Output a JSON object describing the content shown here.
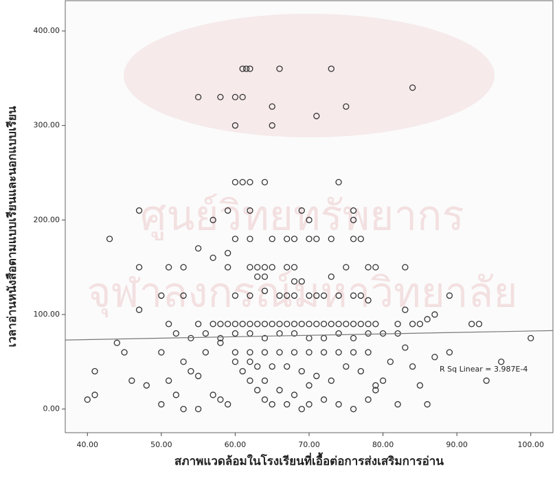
{
  "chart_data": {
    "type": "scatter",
    "x_label": "สภาพแวดล้อมในโรงเรียนที่เอื้อต่อการส่งเสริมการอ่าน",
    "y_label": "เวลาอ่านหนังสือตามแบบเรียนและนอกแบบเรียน",
    "annotation": "R Sq Linear = 3.987E-4",
    "watermark": [
      "ศูนย์วิทยทรัพยากร",
      "จุฬาลงกรณ์มหาวิทยาลัย"
    ],
    "color": "#333333",
    "line_color": "#777777",
    "xlim": [
      37,
      103
    ],
    "ylim": [
      -25,
      432
    ],
    "xticks": [
      {
        "value": 40,
        "label": "40.00"
      },
      {
        "value": 50,
        "label": "50.00"
      },
      {
        "value": 60,
        "label": "60.00"
      },
      {
        "value": 70,
        "label": "70.00"
      },
      {
        "value": 80,
        "label": "80.00"
      },
      {
        "value": 90,
        "label": "90.00"
      },
      {
        "value": 100,
        "label": "100.00"
      }
    ],
    "yticks": [
      {
        "value": 0,
        "label": "0.00"
      },
      {
        "value": 100,
        "label": "100.00"
      },
      {
        "value": 200,
        "label": "200.00"
      },
      {
        "value": 300,
        "label": "300.00"
      },
      {
        "value": 400,
        "label": "400.00"
      }
    ],
    "x": [
      61,
      61.5,
      62,
      66,
      73,
      84,
      55,
      58,
      60,
      61,
      65,
      75,
      60,
      65,
      71,
      60,
      61,
      62,
      64,
      74,
      47,
      59,
      62,
      69,
      76,
      57,
      70,
      76,
      43,
      60,
      62,
      65,
      67,
      68,
      70,
      71,
      73,
      76,
      77,
      47,
      51,
      53,
      59,
      62,
      63,
      64,
      65,
      67,
      68,
      75,
      78,
      79,
      83,
      55,
      57,
      59,
      63,
      64,
      68,
      69,
      73,
      47,
      50,
      53,
      60,
      62,
      64,
      66,
      67,
      68,
      70,
      71,
      72,
      74,
      76,
      77,
      78,
      89,
      83,
      86,
      87,
      51,
      55,
      57,
      58,
      59,
      60,
      61,
      62,
      63,
      64,
      65,
      66,
      67,
      68,
      69,
      70,
      71,
      72,
      73,
      74,
      75,
      76,
      77,
      78,
      79,
      82,
      84,
      85,
      92,
      93,
      100,
      96,
      94,
      86,
      85,
      84,
      81,
      89,
      87,
      82,
      80,
      79,
      78,
      76,
      74,
      72,
      70,
      69,
      67,
      65,
      64,
      63,
      62,
      61,
      60,
      59,
      58,
      57,
      55,
      53,
      52,
      51,
      50,
      48,
      46,
      45,
      44,
      41,
      41,
      40,
      50,
      53,
      54,
      55,
      56,
      58,
      60,
      62,
      64,
      66,
      68,
      70,
      72,
      74,
      76,
      78,
      63,
      65,
      67,
      69,
      71,
      73,
      62,
      64,
      66,
      68,
      70,
      75,
      77,
      79,
      52,
      54,
      56,
      58,
      60,
      62,
      64,
      66,
      68,
      70,
      72,
      74,
      76,
      78,
      80,
      83,
      82
    ],
    "values": [
      360,
      360,
      360,
      360,
      360,
      340,
      330,
      330,
      330,
      330,
      320,
      320,
      300,
      300,
      310,
      240,
      240,
      240,
      240,
      240,
      210,
      210,
      210,
      210,
      210,
      200,
      200,
      200,
      180,
      180,
      180,
      180,
      180,
      180,
      180,
      180,
      180,
      180,
      180,
      150,
      150,
      150,
      150,
      150,
      150,
      150,
      150,
      150,
      150,
      150,
      150,
      150,
      150,
      170,
      160,
      165,
      140,
      140,
      135,
      135,
      140,
      105,
      120,
      120,
      120,
      120,
      125,
      120,
      120,
      120,
      120,
      120,
      120,
      120,
      120,
      120,
      115,
      120,
      105,
      95,
      100,
      90,
      90,
      90,
      90,
      90,
      90,
      90,
      90,
      90,
      90,
      90,
      90,
      90,
      90,
      90,
      90,
      90,
      90,
      90,
      90,
      90,
      90,
      90,
      90,
      90,
      90,
      90,
      90,
      90,
      90,
      75,
      50,
      30,
      5,
      25,
      45,
      50,
      60,
      55,
      5,
      30,
      20,
      10,
      0,
      5,
      10,
      5,
      0,
      5,
      5,
      10,
      20,
      30,
      40,
      50,
      5,
      10,
      15,
      0,
      0,
      15,
      30,
      5,
      25,
      30,
      60,
      70,
      40,
      15,
      10,
      60,
      50,
      40,
      35,
      60,
      70,
      60,
      60,
      60,
      60,
      60,
      60,
      60,
      60,
      60,
      60,
      45,
      45,
      45,
      40,
      35,
      30,
      50,
      30,
      20,
      15,
      25,
      45,
      40,
      25,
      80,
      75,
      80,
      75,
      80,
      80,
      75,
      80,
      80,
      75,
      75,
      80,
      75,
      80,
      80,
      65,
      80
    ],
    "fit_line": {
      "x": [
        37,
        103
      ],
      "y": [
        73,
        83
      ]
    }
  }
}
